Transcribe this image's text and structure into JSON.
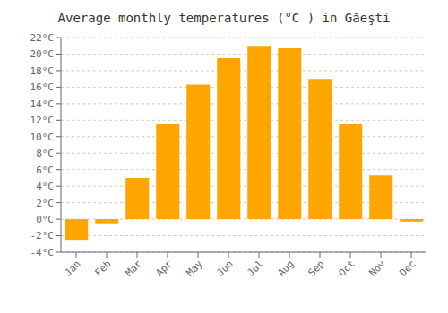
{
  "chart_data": {
    "type": "bar",
    "title": "Average monthly temperatures (°C ) in Găeşti",
    "categories": [
      "Jan",
      "Feb",
      "Mar",
      "Apr",
      "May",
      "Jun",
      "Jul",
      "Aug",
      "Sep",
      "Oct",
      "Nov",
      "Dec"
    ],
    "values": [
      -2.5,
      -0.5,
      5.0,
      11.5,
      16.3,
      19.5,
      21.0,
      20.7,
      17.0,
      11.5,
      5.3,
      -0.3
    ],
    "color": "#FFA500",
    "ylim": [
      -4,
      22
    ],
    "yticks": [
      {
        "value": -4,
        "label": "-4°C"
      },
      {
        "value": -2,
        "label": "-2°C"
      },
      {
        "value": 0,
        "label": "0°C"
      },
      {
        "value": 2,
        "label": "2°C"
      },
      {
        "value": 4,
        "label": "4°C"
      },
      {
        "value": 6,
        "label": "6°C"
      },
      {
        "value": 8,
        "label": "8°C"
      },
      {
        "value": 10,
        "label": "10°C"
      },
      {
        "value": 12,
        "label": "12°C"
      },
      {
        "value": 14,
        "label": "14°C"
      },
      {
        "value": 16,
        "label": "16°C"
      },
      {
        "value": 18,
        "label": "18°C"
      },
      {
        "value": 20,
        "label": "20°C"
      },
      {
        "value": 22,
        "label": "22°C"
      }
    ],
    "grid": true
  }
}
